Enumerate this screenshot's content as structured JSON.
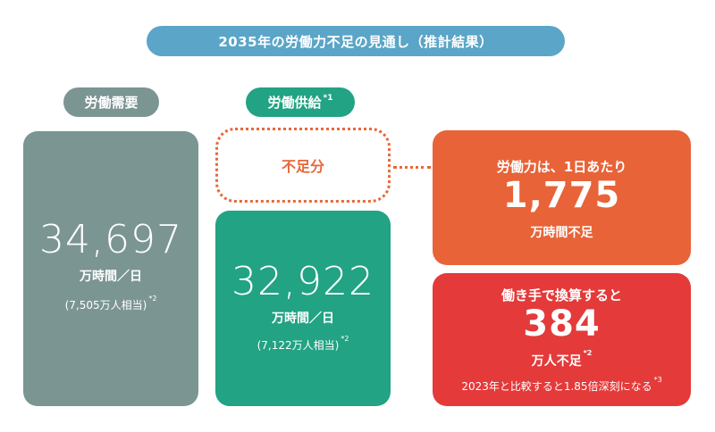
{
  "title": "2035年の労働力不足の見通し（推計結果）",
  "demand": {
    "label": "労働需要",
    "value": "34,697",
    "unit": "万時間／日",
    "note": "(7,505万人相当)",
    "note_mark": "*2"
  },
  "supply": {
    "label": "労働供給",
    "label_mark": "*1",
    "value": "32,922",
    "unit": "万時間／日",
    "note": "(7,122万人相当)",
    "note_mark": "*2"
  },
  "shortage": {
    "label": "不足分"
  },
  "hours_shortage": {
    "heading": "労働力は、1日あたり",
    "value": "1,775",
    "unit": "万時間不足"
  },
  "people_shortage": {
    "heading": "働き手で換算すると",
    "value": "384",
    "unit": "万人不足",
    "unit_mark": "*2",
    "note": "2023年と比較すると1.85倍深刻になる",
    "note_mark": "*3"
  },
  "colors": {
    "title": "#5aa5c8",
    "demand": "#7b9593",
    "supply": "#22a383",
    "shortage_outline": "#e8683a",
    "hours_card": "#e86338",
    "people_card": "#e43a3a"
  }
}
